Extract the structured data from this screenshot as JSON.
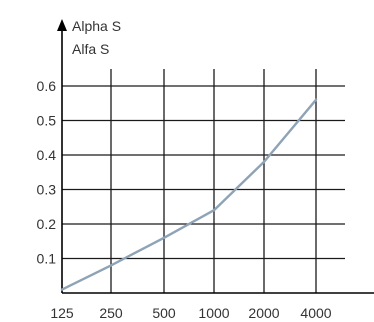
{
  "chart_data": {
    "type": "line",
    "title": "",
    "ylabel_lines": [
      "Alpha S",
      "Alfa S"
    ],
    "xlabel": "",
    "categories": [
      "125",
      "250",
      "500",
      "1000",
      "2000",
      "4000"
    ],
    "y_ticks": [
      "0.1",
      "0.2",
      "0.3",
      "0.4",
      "0.5",
      "0.6"
    ],
    "ylim": [
      0,
      0.65
    ],
    "grid": true,
    "series": [
      {
        "values": [
          0.01,
          0.08,
          0.16,
          0.24,
          0.38,
          0.56
        ]
      }
    ],
    "colors": {
      "line": "#8ea3b6",
      "grid": "#1a1a1a",
      "axis": "#000000",
      "text": "#333333"
    }
  }
}
